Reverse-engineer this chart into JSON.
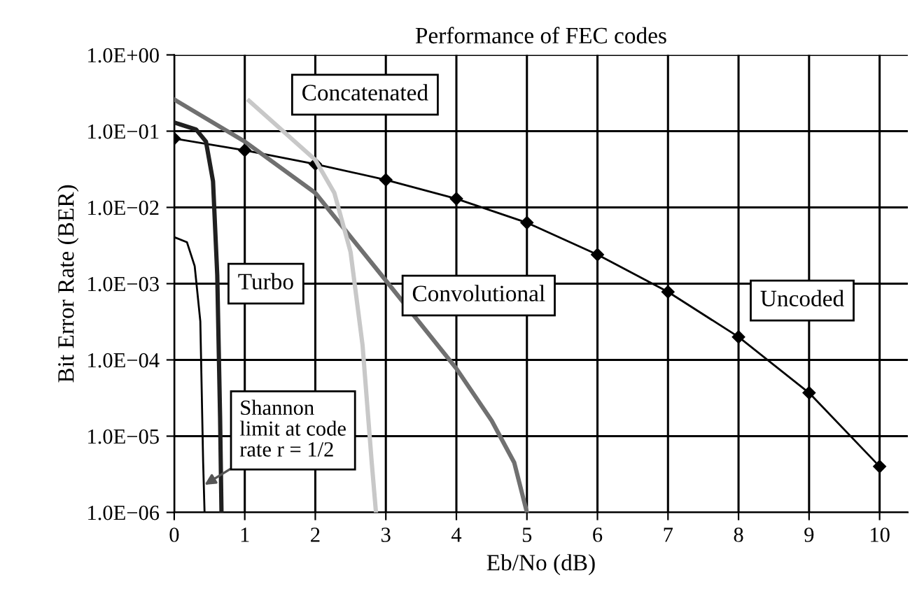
{
  "chart_data": {
    "type": "line",
    "title": "Performance of FEC codes",
    "xlabel": "Eb/No (dB)",
    "ylabel": "Bit Error Rate (BER)",
    "log": "y",
    "grid": true,
    "xlim": [
      0,
      10.4
    ],
    "xticks": [
      0,
      1,
      2,
      3,
      4,
      5,
      6,
      7,
      8,
      9,
      10
    ],
    "ylim": [
      1e-06,
      1
    ],
    "yticks": [
      {
        "value": 1e-06,
        "label": "1.0E−06"
      },
      {
        "value": 1e-05,
        "label": "1.0E−05"
      },
      {
        "value": 0.0001,
        "label": "1.0E−04"
      },
      {
        "value": 0.001,
        "label": "1.0E−03"
      },
      {
        "value": 0.01,
        "label": "1.0E−02"
      },
      {
        "value": 0.1,
        "label": "1.0E−01"
      },
      {
        "value": 1,
        "label": "1.0E+00"
      }
    ],
    "series": [
      {
        "name": "Uncoded",
        "color": "#000000",
        "marker": "diamond",
        "x": [
          0,
          1,
          2,
          3,
          4,
          5,
          6,
          7,
          8,
          9,
          10
        ],
        "values": [
          0.08,
          0.056,
          0.037,
          0.023,
          0.013,
          0.0063,
          0.0024,
          0.00078,
          0.0002,
          3.7e-05,
          4e-06
        ]
      },
      {
        "name": "Convolutional",
        "color": "#707070",
        "marker": "none",
        "x": [
          0,
          1,
          2,
          3,
          4,
          4.5,
          4.82,
          5
        ],
        "values": [
          0.26,
          0.073,
          0.0155,
          0.0011,
          7.7e-05,
          1.6e-05,
          4.5e-06,
          1e-06
        ]
      },
      {
        "name": "Concatenated",
        "color": "#c8c8c8",
        "marker": "none",
        "x": [
          1.06,
          2,
          2.27,
          2.5,
          2.67,
          2.8,
          2.86
        ],
        "values": [
          0.25,
          0.042,
          0.0155,
          0.0026,
          0.000155,
          4.5e-06,
          1e-06
        ]
      },
      {
        "name": "Turbo",
        "color": "#202020",
        "marker": "none",
        "x": [
          0,
          0.31,
          0.45,
          0.55,
          0.61,
          0.65,
          0.67
        ],
        "values": [
          0.13,
          0.105,
          0.073,
          0.022,
          0.0013,
          1.8e-05,
          1e-06
        ]
      },
      {
        "color": "#000000",
        "marker": "none",
        "x": [
          0.02,
          0.18,
          0.29,
          0.37,
          0.41,
          0.43
        ],
        "values": [
          0.004,
          0.0035,
          0.0017,
          0.00032,
          4.5e-06,
          1e-06
        ]
      }
    ],
    "annotations": [
      {
        "text": "Shannon\nlimit at code\nrate r = 1/2",
        "x": 0.43,
        "y": 2.3e-06
      }
    ]
  }
}
